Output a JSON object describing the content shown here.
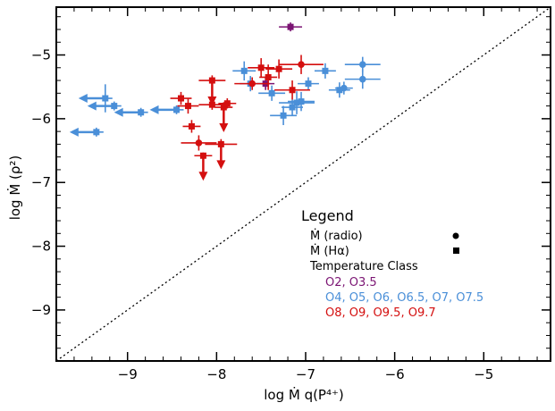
{
  "chart_data": {
    "type": "scatter",
    "xlabel": "log Ṁ q(P⁴⁺)",
    "ylabel": "log Ṁ (ρ²)",
    "xlim": [
      -9.8,
      -4.25
    ],
    "ylim": [
      -9.8,
      -4.25
    ],
    "x_ticks": [
      -9,
      -8,
      -7,
      -6,
      -5
    ],
    "y_ticks": [
      -9,
      -8,
      -7,
      -6,
      -5
    ],
    "x_tick_labels": [
      "−9",
      "−8",
      "−7",
      "−6",
      "−5"
    ],
    "y_tick_labels": [
      "−9",
      "−8",
      "−7",
      "−6",
      "−5"
    ],
    "reference_line": {
      "style": "dotted",
      "from": [
        -9.8,
        -9.8
      ],
      "to": [
        -4.25,
        -4.25
      ]
    },
    "legend": {
      "title": "Legend",
      "placement": "bottom-right",
      "marker_items": [
        {
          "label": "Ṁ (radio)",
          "marker": "circle"
        },
        {
          "label": "Ṁ (Hα)",
          "marker": "square"
        }
      ],
      "class_heading": "Temperature Class",
      "class_items": [
        {
          "label": "O2, O3.5",
          "color": "#7b1473"
        },
        {
          "label": "O4, O5, O6, O6.5, O7, O7.5",
          "color": "#4a8fd8"
        },
        {
          "label": "O8, O9, O9.5, O9.7",
          "color": "#d40f0f"
        }
      ]
    },
    "colors": {
      "purple": "#7b1473",
      "blue": "#4a8fd8",
      "red": "#d40f0f"
    },
    "series": [
      {
        "name": "O2, O3.5",
        "color": "#7b1473",
        "points": [
          {
            "x": -7.17,
            "y": -4.56,
            "marker": "square",
            "xerr": 0.13,
            "yerr": 0.07
          },
          {
            "x": -7.45,
            "y": -5.45,
            "marker": "square",
            "xerr": 0.1,
            "yerr": 0.1
          }
        ]
      },
      {
        "name": "O4, O5, O6, O6.5, O7, O7.5",
        "color": "#4a8fd8",
        "points": [
          {
            "x": -9.35,
            "y": -6.21,
            "marker": "square",
            "xerr": 0.08,
            "yerr": 0.07,
            "upper_x": true
          },
          {
            "x": -9.25,
            "y": -5.68,
            "marker": "square",
            "xerr": 0.08,
            "yerr": 0.22,
            "upper_x": true
          },
          {
            "x": -9.15,
            "y": -5.8,
            "marker": "square",
            "xerr": 0.08,
            "yerr": 0.07,
            "upper_x": true
          },
          {
            "x": -8.85,
            "y": -5.9,
            "marker": "square",
            "xerr": 0.08,
            "yerr": 0.07,
            "upper_x": true
          },
          {
            "x": -8.45,
            "y": -5.86,
            "marker": "square",
            "xerr": 0.08,
            "yerr": 0.07,
            "upper_x": true
          },
          {
            "x": -7.69,
            "y": -5.25,
            "marker": "square",
            "xerr": 0.13,
            "yerr": 0.15
          },
          {
            "x": -7.62,
            "y": -5.45,
            "marker": "square",
            "xerr": 0.12,
            "yerr": 0.12
          },
          {
            "x": -7.38,
            "y": -5.6,
            "marker": "square",
            "xerr": 0.15,
            "yerr": 0.12
          },
          {
            "x": -7.25,
            "y": -5.95,
            "marker": "square",
            "xerr": 0.15,
            "yerr": 0.15
          },
          {
            "x": -7.15,
            "y": -5.82,
            "marker": "square",
            "xerr": 0.12,
            "yerr": 0.12
          },
          {
            "x": -7.1,
            "y": -5.75,
            "marker": "square",
            "xerr": 0.2,
            "yerr": 0.18
          },
          {
            "x": -7.05,
            "y": -5.73,
            "marker": "square",
            "xerr": 0.15,
            "yerr": 0.15
          },
          {
            "x": -6.97,
            "y": -5.45,
            "marker": "square",
            "xerr": 0.12,
            "yerr": 0.1
          },
          {
            "x": -6.78,
            "y": -5.25,
            "marker": "square",
            "xerr": 0.12,
            "yerr": 0.12
          },
          {
            "x": -6.62,
            "y": -5.55,
            "marker": "square",
            "xerr": 0.12,
            "yerr": 0.12
          },
          {
            "x": -6.57,
            "y": -5.52,
            "marker": "circle",
            "xerr": 0.1,
            "yerr": 0.1
          },
          {
            "x": -6.36,
            "y": -5.15,
            "marker": "circle",
            "xerr": 0.2,
            "yerr": 0.12
          },
          {
            "x": -6.36,
            "y": -5.38,
            "marker": "circle",
            "xerr": 0.2,
            "yerr": 0.15
          }
        ]
      },
      {
        "name": "O8, O9, O9.5, O9.7",
        "color": "#d40f0f",
        "points": [
          {
            "x": -8.4,
            "y": -5.68,
            "marker": "square",
            "xerr": 0.12,
            "yerr": 0.1
          },
          {
            "x": -8.32,
            "y": -5.8,
            "marker": "square",
            "xerr": 0.12,
            "yerr": 0.12
          },
          {
            "x": -8.28,
            "y": -6.12,
            "marker": "square",
            "xerr": 0.1,
            "yerr": 0.1
          },
          {
            "x": -8.2,
            "y": -6.38,
            "marker": "circle",
            "xerr": 0.2,
            "yerr": 0.12
          },
          {
            "x": -8.15,
            "y": -6.58,
            "marker": "square",
            "xerr": 0.1,
            "yerr": 0.05,
            "upper_y": true
          },
          {
            "x": -8.05,
            "y": -5.4,
            "marker": "square",
            "xerr": 0.15,
            "yerr": 0.08,
            "upper_y": true
          },
          {
            "x": -8.05,
            "y": -5.78,
            "marker": "square",
            "xerr": 0.15,
            "yerr": 0.08
          },
          {
            "x": -7.95,
            "y": -6.4,
            "marker": "square",
            "xerr": 0.18,
            "yerr": 0.08,
            "upper_y": true
          },
          {
            "x": -7.92,
            "y": -5.82,
            "marker": "square",
            "xerr": 0.1,
            "yerr": 0.08,
            "upper_y": true
          },
          {
            "x": -7.88,
            "y": -5.76,
            "marker": "square",
            "xerr": 0.1,
            "yerr": 0.08
          },
          {
            "x": -7.6,
            "y": -5.45,
            "marker": "circle",
            "xerr": 0.2,
            "yerr": 0.1
          },
          {
            "x": -7.5,
            "y": -5.2,
            "marker": "square",
            "xerr": 0.15,
            "yerr": 0.15
          },
          {
            "x": -7.42,
            "y": -5.35,
            "marker": "square",
            "xerr": 0.1,
            "yerr": 0.2
          },
          {
            "x": -7.3,
            "y": -5.22,
            "marker": "square",
            "xerr": 0.15,
            "yerr": 0.15
          },
          {
            "x": -7.15,
            "y": -5.55,
            "marker": "square",
            "xerr": 0.2,
            "yerr": 0.15
          },
          {
            "x": -7.05,
            "y": -5.15,
            "marker": "circle",
            "xerr": 0.25,
            "yerr": 0.15
          }
        ]
      }
    ]
  }
}
